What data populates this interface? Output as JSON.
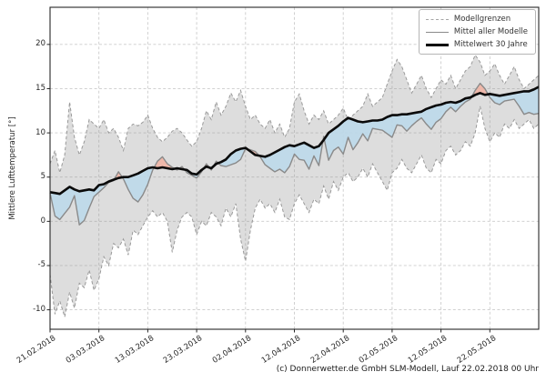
{
  "figure": {
    "ylabel": "Mittlere Lufttemperatur [°]",
    "caption": "(c) Donnerwetter.de GmbH SLM-Modell, Lauf 22.02.2018 00 Uhr"
  },
  "legend": {
    "position": "upper right",
    "items": [
      {
        "label": "Modellgrenzen",
        "style": "dashed-gray"
      },
      {
        "label": "Mittel aller Modelle",
        "style": "solid-gray"
      },
      {
        "label": "Mittelwert 30 Jahre",
        "style": "solid-black-thick"
      }
    ]
  },
  "chart_data": {
    "type": "line",
    "title": "",
    "xlabel": "",
    "ylabel": "Mittlere Lufttemperatur [°]",
    "caption": "(c) Donnerwetter.de GmbH SLM-Modell, Lauf 22.02.2018 00 Uhr",
    "grid": true,
    "legend_position": "upper right",
    "x_unit": "days since 21.02.2018",
    "xlim": [
      0,
      100
    ],
    "ylim": [
      -12.2,
      24.2
    ],
    "y_ticks": [
      -10,
      -5,
      0,
      5,
      10,
      15,
      20
    ],
    "y_tick_labels": [
      "-10",
      "-5",
      "0",
      "5",
      "10",
      "15",
      "20"
    ],
    "x_tick_days": [
      0,
      10,
      20,
      30,
      40,
      50,
      60,
      70,
      80,
      90
    ],
    "x_tick_labels": [
      "21.02.2018",
      "03.03.2018",
      "13.03.2018",
      "23.03.2018",
      "02.04.2018",
      "12.04.2018",
      "22.04.2018",
      "02.05.2018",
      "12.05.2018",
      "22.05.2018"
    ],
    "colors": {
      "band_fill": "rgba(150,150,150,0.32)",
      "band_edge": "#999999",
      "below_fill": "#bcd9ea",
      "above_fill": "#f0b4a4",
      "model_line": "#8a8a8a",
      "climate_line": "#0a0a0a",
      "grid_line": "#cccccc",
      "frame": "#262626"
    },
    "series": [
      {
        "name": "Modellgrenzen (obere Grenze)",
        "style": "dashed",
        "role": "upper_bound",
        "values": [
          6.5,
          8.0,
          5.5,
          7.5,
          13.5,
          9.5,
          7.5,
          9.0,
          11.5,
          11.0,
          10.5,
          11.5,
          10.0,
          10.5,
          9.5,
          8.0,
          10.5,
          11.0,
          10.8,
          11.2,
          12.0,
          10.5,
          9.5,
          9.0,
          9.5,
          10.2,
          10.5,
          10.0,
          9.2,
          8.5,
          9.0,
          10.5,
          12.5,
          11.5,
          13.5,
          12.0,
          13.0,
          14.5,
          13.5,
          14.8,
          13.0,
          11.5,
          12.0,
          11.0,
          10.5,
          11.5,
          10.0,
          11.0,
          9.5,
          10.5,
          13.5,
          14.4,
          12.5,
          11.0,
          12.0,
          11.5,
          12.5,
          11.0,
          11.5,
          12.0,
          12.8,
          11.5,
          12.0,
          12.5,
          13.0,
          14.4,
          13.0,
          13.5,
          14.0,
          15.5,
          17.0,
          18.3,
          17.5,
          16.0,
          14.5,
          15.5,
          16.5,
          15.0,
          14.0,
          15.0,
          16.0,
          15.5,
          16.5,
          15.0,
          16.0,
          17.0,
          17.5,
          18.8,
          18.0,
          16.5,
          17.0,
          17.8,
          16.5,
          15.5,
          16.5,
          17.5,
          16.0,
          15.0,
          15.5,
          16.0,
          16.5
        ]
      },
      {
        "name": "Modellgrenzen (untere Grenze)",
        "style": "dashed",
        "role": "lower_bound",
        "values": [
          -6.0,
          -10.5,
          -9.0,
          -10.8,
          -8.0,
          -9.8,
          -7.0,
          -7.5,
          -5.5,
          -7.8,
          -6.5,
          -4.0,
          -5.0,
          -2.5,
          -3.0,
          -2.0,
          -3.8,
          -1.0,
          -1.5,
          -0.5,
          0.5,
          1.2,
          0.5,
          1.0,
          0.0,
          -3.5,
          -1.0,
          0.5,
          1.0,
          0.5,
          -1.5,
          0.0,
          -0.5,
          1.0,
          0.5,
          -0.5,
          1.5,
          0.5,
          2.0,
          -2.0,
          -4.5,
          -1.0,
          1.5,
          2.5,
          1.5,
          2.0,
          1.0,
          2.5,
          0.5,
          0.2,
          2.0,
          3.0,
          2.0,
          1.0,
          2.5,
          2.0,
          4.0,
          2.5,
          4.5,
          3.5,
          5.0,
          5.5,
          4.5,
          5.0,
          6.0,
          5.0,
          6.5,
          5.5,
          4.5,
          3.5,
          5.5,
          6.0,
          7.0,
          6.0,
          5.5,
          6.5,
          7.5,
          6.0,
          5.5,
          7.0,
          6.5,
          8.0,
          8.5,
          7.5,
          8.0,
          9.0,
          8.5,
          10.0,
          13.0,
          10.5,
          9.0,
          10.0,
          9.5,
          11.0,
          10.5,
          11.5,
          10.5,
          11.0,
          11.5,
          10.5,
          11.0
        ]
      },
      {
        "name": "Mittel aller Modelle",
        "style": "solid",
        "role": "model_mean",
        "values": [
          3.2,
          0.6,
          0.2,
          0.9,
          1.6,
          2.9,
          -0.4,
          0.1,
          1.5,
          2.8,
          3.3,
          3.8,
          4.4,
          4.6,
          5.6,
          4.8,
          3.6,
          2.6,
          2.2,
          3.0,
          4.2,
          5.8,
          6.8,
          7.3,
          6.5,
          6.1,
          5.8,
          6.2,
          5.5,
          5.2,
          4.9,
          5.6,
          6.5,
          5.8,
          6.8,
          6.3,
          6.2,
          6.4,
          6.6,
          7.0,
          8.2,
          8.1,
          7.9,
          7.3,
          6.4,
          6.0,
          5.6,
          5.9,
          5.5,
          6.2,
          7.6,
          7.0,
          6.9,
          5.9,
          7.4,
          6.3,
          9.6,
          6.9,
          8.0,
          8.4,
          7.6,
          9.5,
          8.1,
          8.9,
          9.9,
          9.1,
          10.5,
          10.4,
          10.3,
          9.9,
          9.5,
          10.9,
          10.8,
          10.2,
          10.8,
          11.3,
          11.7,
          11.0,
          10.4,
          11.2,
          11.6,
          12.4,
          12.9,
          12.4,
          13.0,
          13.5,
          13.8,
          14.8,
          15.6,
          15.0,
          14.0,
          13.4,
          13.2,
          13.6,
          13.7,
          13.8,
          13.0,
          12.1,
          12.3,
          12.1,
          12.2
        ]
      },
      {
        "name": "Mittelwert 30 Jahre",
        "style": "solid-thick",
        "role": "climate_mean",
        "values": [
          3.3,
          3.2,
          3.1,
          3.5,
          3.9,
          3.6,
          3.4,
          3.5,
          3.6,
          3.5,
          4.1,
          4.2,
          4.5,
          4.7,
          4.9,
          5.0,
          5.0,
          5.2,
          5.4,
          5.7,
          6.0,
          6.1,
          6.0,
          6.1,
          6.0,
          5.9,
          6.0,
          5.9,
          5.8,
          5.4,
          5.3,
          5.8,
          6.2,
          6.0,
          6.5,
          6.7,
          7.0,
          7.6,
          8.0,
          8.2,
          8.3,
          7.9,
          7.5,
          7.4,
          7.3,
          7.5,
          7.8,
          8.1,
          8.4,
          8.6,
          8.5,
          8.7,
          8.9,
          8.6,
          8.3,
          8.5,
          9.2,
          10.0,
          10.4,
          10.8,
          11.3,
          11.7,
          11.5,
          11.3,
          11.2,
          11.3,
          11.4,
          11.4,
          11.5,
          11.8,
          12.0,
          12.0,
          12.1,
          12.1,
          12.2,
          12.3,
          12.4,
          12.7,
          12.9,
          13.1,
          13.2,
          13.4,
          13.5,
          13.4,
          13.6,
          13.9,
          14.0,
          14.3,
          14.5,
          14.3,
          14.4,
          14.3,
          14.2,
          14.3,
          14.4,
          14.5,
          14.6,
          14.7,
          14.7,
          14.9,
          15.2
        ]
      }
    ]
  }
}
